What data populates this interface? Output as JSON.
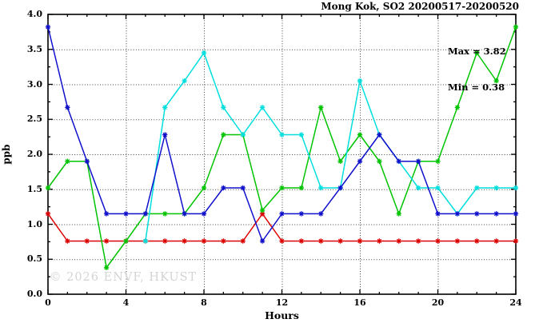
{
  "watermark": "© 2026 ENVF, HKUST",
  "chart_data": {
    "type": "line",
    "title": "Mong Kok, SO2 20200517-20200520",
    "xlabel": "Hours",
    "ylabel": "ppb",
    "xlim": [
      0,
      24
    ],
    "ylim": [
      0.0,
      4.0
    ],
    "grid": true,
    "legend": "none",
    "annotations": {
      "max_label": "Max = 3.82",
      "min_label": "Min = 0.38"
    },
    "max": 3.82,
    "min": 0.38,
    "x_tick_labels": [
      "0",
      "4",
      "8",
      "12",
      "16",
      "20",
      "24"
    ],
    "x_tick_values": [
      0,
      4,
      8,
      12,
      16,
      20,
      24
    ],
    "y_tick_labels": [
      "0.0",
      "0.5",
      "1.0",
      "1.5",
      "2.0",
      "2.5",
      "3.0",
      "3.5",
      "4.0"
    ],
    "y_tick_values": [
      0.0,
      0.5,
      1.0,
      1.5,
      2.0,
      2.5,
      3.0,
      3.5,
      4.0
    ],
    "x_minor_step": 1,
    "y_minor_step": 0.25,
    "x_grid_values": [
      4,
      8,
      12,
      16,
      20
    ],
    "y_grid_values": [
      0.5,
      1.0,
      1.5,
      2.0,
      2.5,
      3.0,
      3.5
    ],
    "marker": "asterisk",
    "x": [
      0,
      1,
      2,
      3,
      4,
      5,
      6,
      7,
      8,
      9,
      10,
      11,
      12,
      13,
      14,
      15,
      16,
      17,
      18,
      19,
      20,
      21,
      22,
      23,
      24
    ],
    "series": [
      {
        "name": "red-line",
        "color": "#dd0000",
        "values": [
          1.15,
          0.76,
          0.76,
          0.76,
          0.76,
          0.76,
          0.76,
          0.76,
          0.76,
          0.76,
          0.76,
          1.15,
          0.76,
          0.76,
          0.76,
          0.76,
          0.76,
          0.76,
          0.76,
          0.76,
          0.76,
          0.76,
          0.76,
          0.76,
          0.76
        ]
      },
      {
        "name": "green-line",
        "color": "#00c400",
        "values": [
          1.52,
          1.9,
          1.9,
          0.38,
          0.76,
          1.15,
          1.15,
          1.15,
          1.52,
          2.28,
          2.28,
          1.2,
          1.52,
          1.52,
          2.67,
          1.9,
          2.28,
          1.9,
          1.15,
          1.9,
          1.9,
          2.67,
          3.45,
          3.05,
          3.82
        ]
      },
      {
        "name": "cyan-line",
        "color": "#00dede",
        "values": [
          null,
          null,
          null,
          null,
          null,
          0.76,
          2.67,
          3.05,
          3.45,
          2.67,
          2.28,
          2.67,
          2.28,
          2.28,
          1.52,
          1.52,
          3.05,
          2.28,
          1.9,
          1.52,
          1.52,
          1.15,
          1.52,
          1.52,
          1.52
        ]
      },
      {
        "name": "blue-line",
        "color": "#1010cc",
        "values": [
          3.82,
          2.67,
          1.9,
          1.15,
          1.15,
          1.15,
          2.28,
          1.15,
          1.15,
          1.52,
          1.52,
          0.76,
          1.15,
          1.15,
          1.15,
          1.52,
          1.9,
          2.28,
          1.9,
          1.9,
          1.15,
          1.15,
          1.15,
          1.15,
          1.15
        ]
      }
    ]
  }
}
